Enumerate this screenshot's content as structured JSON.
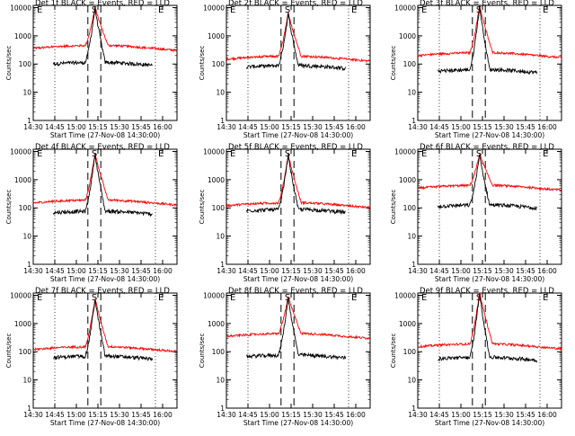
{
  "figure": {
    "panels": [
      {
        "title": "Det 1f BLACK = Events, RED = LLD",
        "series_events": {
          "base": 90,
          "peak": 10500
        },
        "series_lld": {
          "base": 360,
          "peak": 10500
        }
      },
      {
        "title": "Det 2f BLACK = Events, RED = LLD",
        "series_events": {
          "base": 70,
          "peak": 6500
        },
        "series_lld": {
          "base": 150,
          "peak": 6500
        }
      },
      {
        "title": "Det 3f BLACK = Events, RED = LLD",
        "series_events": {
          "base": 50,
          "peak": 12000
        },
        "series_lld": {
          "base": 200,
          "peak": 12000
        }
      },
      {
        "title": "Det 4f BLACK = Events, RED = LLD",
        "series_events": {
          "base": 60,
          "peak": 9000
        },
        "series_lld": {
          "base": 150,
          "peak": 9000
        }
      },
      {
        "title": "Det 5f BLACK = Events, RED = LLD",
        "series_events": {
          "base": 70,
          "peak": 8000
        },
        "series_lld": {
          "base": 120,
          "peak": 8000
        }
      },
      {
        "title": "Det 6f BLACK = Events, RED = LLD",
        "series_events": {
          "base": 100,
          "peak": 8000
        },
        "series_lld": {
          "base": 500,
          "peak": 8000
        }
      },
      {
        "title": "Det 7f BLACK = Events, RED = LLD",
        "series_events": {
          "base": 55,
          "peak": 8000
        },
        "series_lld": {
          "base": 120,
          "peak": 8000
        }
      },
      {
        "title": "Det 8f BLACK = Events, RED = LLD",
        "series_events": {
          "base": 60,
          "peak": 9000
        },
        "series_lld": {
          "base": 350,
          "peak": 9000
        }
      },
      {
        "title": "Det 9f BLACK = Events, RED = LLD",
        "series_events": {
          "base": 50,
          "peak": 13000
        },
        "series_lld": {
          "base": 150,
          "peak": 13000
        }
      }
    ],
    "xlabel": "Start Time (27-Nov-08 14:30:00)",
    "ylabel": "Counts/sec",
    "x_ticks": [
      "14:30",
      "14:45",
      "15:00",
      "15:15",
      "15:30",
      "15:45",
      "16:00"
    ],
    "y_ticks": [
      "1",
      "10",
      "100",
      "1000",
      "10000"
    ],
    "markers": {
      "s": "S",
      "e": "E"
    }
  },
  "chart_data": {
    "type": "line",
    "x_range": [
      "14:30",
      "16:10"
    ],
    "y_scale": "log",
    "ylim": [
      1,
      12000
    ],
    "xlabel": "Start Time (27-Nov-08 14:30:00)",
    "ylabel": "Counts/sec",
    "series_colors": {
      "events": "#000000",
      "lld": "#ff0000"
    },
    "dotted_verticals": [
      "14:45",
      "15:55"
    ],
    "dashed_verticals": [
      "15:08",
      "15:17"
    ],
    "panels": [
      {
        "title": "Det 1f BLACK = Events, RED = LLD",
        "events_base": 90,
        "lld_base": 360,
        "peak": 10500
      },
      {
        "title": "Det 2f BLACK = Events, RED = LLD",
        "events_base": 70,
        "lld_base": 150,
        "peak": 6500
      },
      {
        "title": "Det 3f BLACK = Events, RED = LLD",
        "events_base": 50,
        "lld_base": 200,
        "peak": 12000
      },
      {
        "title": "Det 4f BLACK = Events, RED = LLD",
        "events_base": 60,
        "lld_base": 150,
        "peak": 9000
      },
      {
        "title": "Det 5f BLACK = Events, RED = LLD",
        "events_base": 70,
        "lld_base": 120,
        "peak": 8000
      },
      {
        "title": "Det 6f BLACK = Events, RED = LLD",
        "events_base": 100,
        "lld_base": 500,
        "peak": 8000
      },
      {
        "title": "Det 7f BLACK = Events, RED = LLD",
        "events_base": 55,
        "lld_base": 120,
        "peak": 8000
      },
      {
        "title": "Det 8f BLACK = Events, RED = LLD",
        "events_base": 60,
        "lld_base": 350,
        "peak": 9000
      },
      {
        "title": "Det 9f BLACK = Events, RED = LLD",
        "events_base": 50,
        "lld_base": 150,
        "peak": 13000
      }
    ]
  }
}
